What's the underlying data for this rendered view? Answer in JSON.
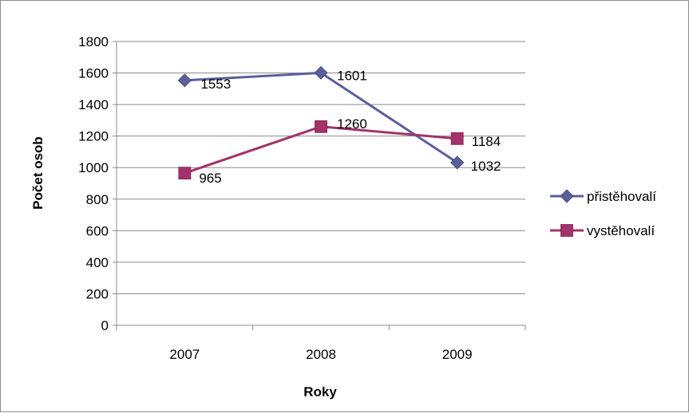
{
  "chart_data": {
    "type": "line",
    "title": "",
    "xlabel": "Roky",
    "ylabel": "Počet osob",
    "categories": [
      "2007",
      "2008",
      "2009"
    ],
    "ylim": [
      0,
      1800
    ],
    "yticks": [
      0,
      200,
      400,
      600,
      800,
      1000,
      1200,
      1400,
      1600,
      1800
    ],
    "grid": true,
    "legend_position": "right",
    "series": [
      {
        "name": "přistěhovalí",
        "values": [
          1553,
          1601,
          1032
        ],
        "color": "#5a5f9c",
        "marker": "diamond"
      },
      {
        "name": "vystěhovalí",
        "values": [
          965,
          1260,
          1184
        ],
        "color": "#a3336b",
        "marker": "square"
      }
    ]
  }
}
